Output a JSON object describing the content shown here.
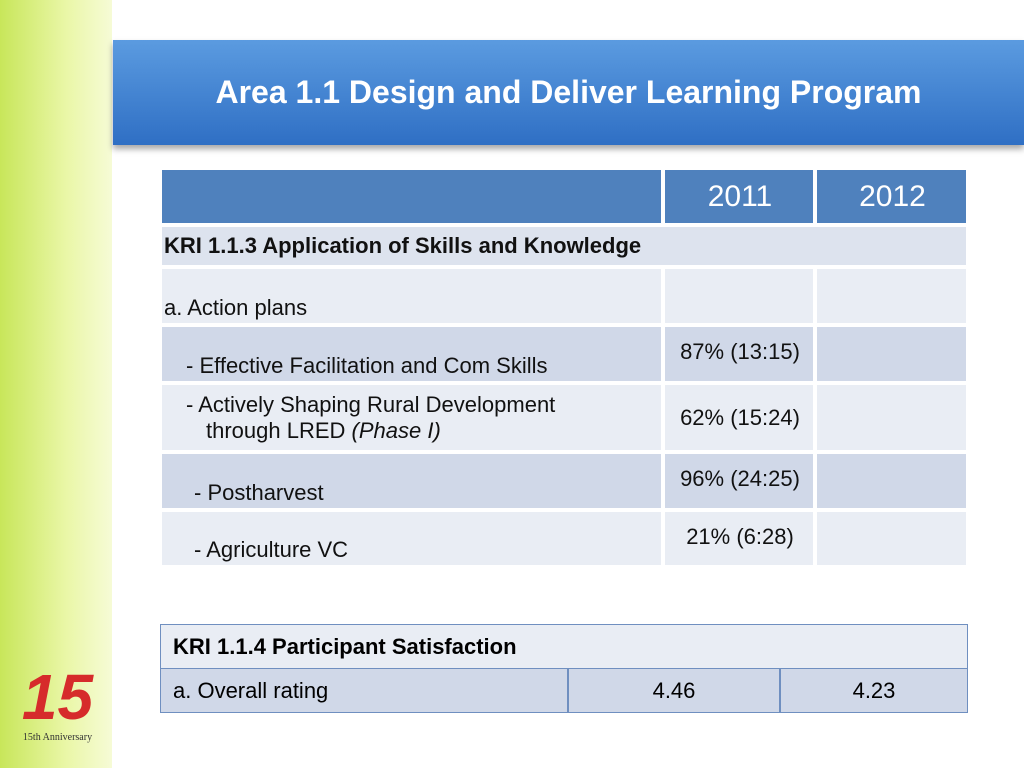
{
  "header": {
    "title": "Area 1.1 Design and Deliver Learning Program"
  },
  "table1": {
    "columns": [
      "2011",
      "2012"
    ],
    "section": "KRI 1.1.3  Application of Skills and Knowledge",
    "rows": [
      {
        "label": "a.  Action plans"
      },
      {
        "label": "- Effective Facilitation and Com Skills",
        "value_2011": "87% (13:15)"
      },
      {
        "label": "- Actively Shaping Rural Development",
        "label_line2": "through LRED",
        "label_note": "(Phase I)",
        "value_2011": "62% (15:24)"
      },
      {
        "label": "- Postharvest",
        "value_2011": "96% (24:25)"
      },
      {
        "label": "- Agriculture VC",
        "value_2011": "21% (6:28)"
      }
    ]
  },
  "table2": {
    "title": "KRI 1.1.4 Participant Satisfaction",
    "rows": [
      {
        "label": "a. Overall rating",
        "values": [
          4.46,
          4.23
        ]
      }
    ]
  },
  "logo": {
    "number": "15",
    "caption": "15th Anniversary"
  }
}
